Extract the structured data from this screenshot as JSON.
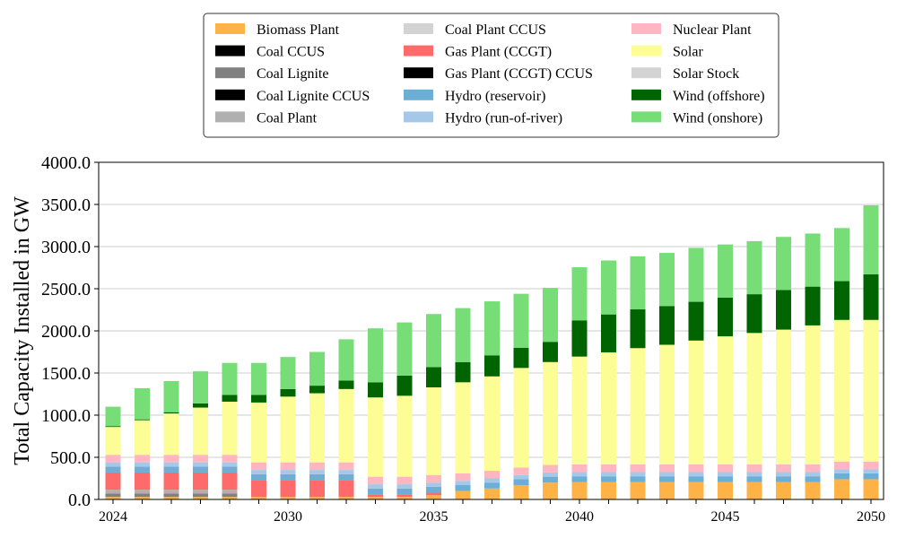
{
  "chart_data": {
    "type": "bar",
    "stacked": true,
    "title": "",
    "xlabel": "",
    "ylabel": "Total Capacity Installed in GW",
    "ylim": [
      0,
      4000
    ],
    "yticks": [
      "0.0",
      "500.0",
      "1000.0",
      "1500.0",
      "2000.0",
      "2500.0",
      "3000.0",
      "3500.0",
      "4000.0"
    ],
    "xtick_labels": [
      {
        "year": 2024,
        "label": "2024"
      },
      {
        "year": 2030,
        "label": "2030"
      },
      {
        "year": 2035,
        "label": "2035"
      },
      {
        "year": 2040,
        "label": "2040"
      },
      {
        "year": 2045,
        "label": "2045"
      },
      {
        "year": 2050,
        "label": "2050"
      }
    ],
    "grid": "horizontal",
    "legend_position": "top-center",
    "categories": [
      2024,
      2025,
      2026,
      2027,
      2028,
      2029,
      2030,
      2031,
      2032,
      2033,
      2034,
      2035,
      2036,
      2037,
      2038,
      2039,
      2040,
      2041,
      2042,
      2043,
      2044,
      2045,
      2046,
      2047,
      2048,
      2049,
      2050
    ],
    "series": [
      {
        "name": "Biomass Plant",
        "color": "#ffb347",
        "values": [
          30,
          30,
          30,
          30,
          30,
          30,
          30,
          30,
          30,
          30,
          30,
          50,
          100,
          130,
          170,
          200,
          205,
          205,
          205,
          205,
          205,
          205,
          205,
          205,
          205,
          240,
          240
        ]
      },
      {
        "name": "Coal CCUS",
        "color": "#000000",
        "values": [
          0,
          0,
          0,
          0,
          0,
          0,
          0,
          0,
          0,
          0,
          0,
          0,
          0,
          0,
          0,
          0,
          0,
          0,
          0,
          0,
          0,
          0,
          0,
          0,
          0,
          0,
          0
        ]
      },
      {
        "name": "Coal Lignite",
        "color": "#808080",
        "values": [
          40,
          40,
          40,
          40,
          40,
          0,
          0,
          0,
          0,
          0,
          0,
          0,
          0,
          0,
          0,
          0,
          0,
          0,
          0,
          0,
          0,
          0,
          0,
          0,
          0,
          0,
          0
        ]
      },
      {
        "name": "Coal Lignite CCUS",
        "color": "#000000",
        "values": [
          0,
          0,
          0,
          0,
          0,
          0,
          0,
          0,
          0,
          0,
          0,
          0,
          0,
          0,
          0,
          0,
          0,
          0,
          0,
          0,
          0,
          0,
          0,
          0,
          0,
          0,
          0
        ]
      },
      {
        "name": "Coal Plant",
        "color": "#b0b0b0",
        "values": [
          45,
          45,
          45,
          45,
          45,
          0,
          0,
          0,
          0,
          0,
          0,
          0,
          0,
          0,
          0,
          0,
          0,
          0,
          0,
          0,
          0,
          0,
          0,
          0,
          0,
          0,
          0
        ]
      },
      {
        "name": "Coal Plant CCUS",
        "color": "#d3d3d3",
        "values": [
          0,
          0,
          0,
          0,
          0,
          0,
          0,
          0,
          0,
          0,
          0,
          0,
          0,
          0,
          0,
          0,
          0,
          0,
          0,
          0,
          0,
          0,
          0,
          0,
          0,
          0,
          0
        ]
      },
      {
        "name": "Gas Plant (CCGT)",
        "color": "#ff6b6b",
        "values": [
          205,
          205,
          205,
          205,
          205,
          200,
          200,
          200,
          200,
          30,
          30,
          30,
          0,
          0,
          0,
          0,
          0,
          0,
          0,
          0,
          0,
          0,
          0,
          0,
          0,
          0,
          0
        ]
      },
      {
        "name": "Gas Plant (CCGT) CCUS",
        "color": "#000000",
        "values": [
          0,
          0,
          0,
          0,
          0,
          0,
          0,
          0,
          0,
          0,
          0,
          0,
          0,
          0,
          0,
          0,
          0,
          0,
          0,
          0,
          0,
          0,
          0,
          0,
          0,
          0,
          0
        ]
      },
      {
        "name": "Hydro (reservoir)",
        "color": "#6baed6",
        "values": [
          70,
          70,
          70,
          70,
          70,
          70,
          70,
          70,
          70,
          70,
          70,
          70,
          70,
          70,
          70,
          70,
          70,
          70,
          70,
          70,
          70,
          70,
          70,
          70,
          70,
          70,
          70
        ]
      },
      {
        "name": "Hydro (run-of-river)",
        "color": "#a6c8e8",
        "values": [
          50,
          50,
          50,
          50,
          50,
          50,
          50,
          50,
          50,
          50,
          50,
          50,
          50,
          50,
          50,
          50,
          50,
          50,
          50,
          50,
          50,
          50,
          50,
          50,
          50,
          50,
          50
        ]
      },
      {
        "name": "Nuclear Plant",
        "color": "#ffb6c1",
        "values": [
          90,
          90,
          90,
          90,
          90,
          90,
          90,
          90,
          90,
          90,
          90,
          90,
          90,
          90,
          90,
          90,
          90,
          90,
          90,
          90,
          90,
          90,
          90,
          90,
          90,
          90,
          90
        ]
      },
      {
        "name": "Solar",
        "color": "#fdfd96",
        "values": [
          330,
          410,
          490,
          560,
          630,
          710,
          780,
          820,
          870,
          940,
          960,
          1040,
          1080,
          1120,
          1180,
          1220,
          1280,
          1330,
          1380,
          1420,
          1470,
          1520,
          1560,
          1600,
          1650,
          1680,
          1680
        ]
      },
      {
        "name": "Solar Stock",
        "color": "#d3d3d3",
        "values": [
          0,
          0,
          0,
          0,
          0,
          0,
          0,
          0,
          0,
          0,
          0,
          0,
          0,
          0,
          0,
          0,
          0,
          0,
          0,
          0,
          0,
          0,
          0,
          0,
          0,
          0,
          0
        ]
      },
      {
        "name": "Wind (offshore)",
        "color": "#006400",
        "values": [
          10,
          10,
          15,
          50,
          80,
          90,
          90,
          90,
          100,
          180,
          240,
          240,
          240,
          250,
          240,
          240,
          430,
          450,
          460,
          460,
          460,
          460,
          460,
          470,
          460,
          460,
          540
        ]
      },
      {
        "name": "Wind (onshore)",
        "color": "#77dd77",
        "values": [
          230,
          370,
          370,
          380,
          380,
          380,
          380,
          400,
          490,
          640,
          630,
          630,
          640,
          640,
          640,
          640,
          630,
          640,
          630,
          630,
          640,
          630,
          630,
          630,
          630,
          630,
          820
        ]
      }
    ]
  }
}
